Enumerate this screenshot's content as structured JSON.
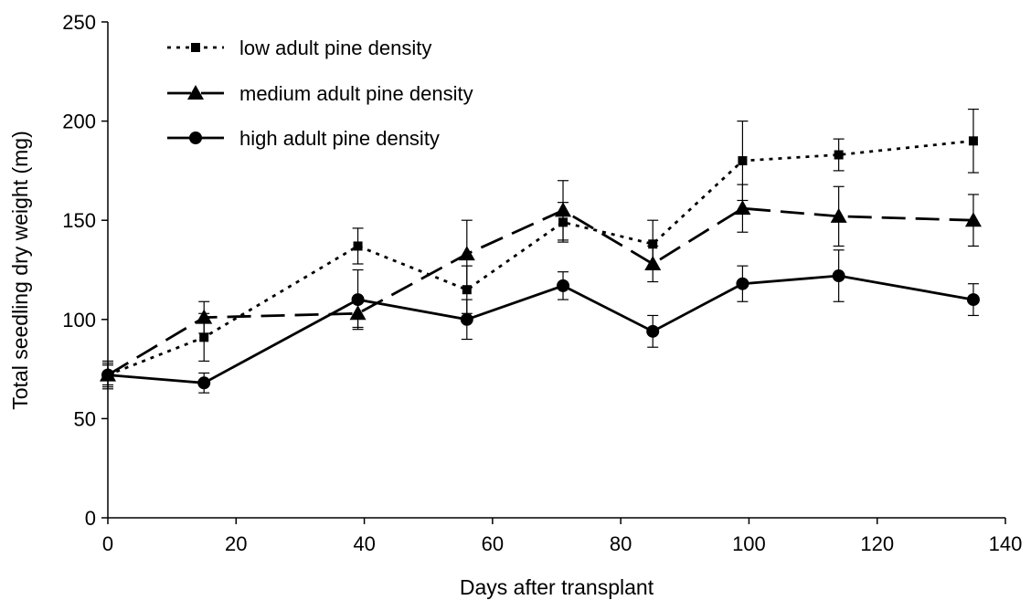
{
  "chart_data": {
    "type": "line",
    "title": "",
    "xlabel": "Days after transplant",
    "ylabel": "Total seedling dry weight (mg)",
    "xlim": [
      0,
      140
    ],
    "ylim": [
      0,
      250
    ],
    "xticks": [
      0,
      20,
      40,
      60,
      80,
      100,
      120,
      140
    ],
    "yticks": [
      0,
      50,
      100,
      150,
      200,
      250
    ],
    "grid": false,
    "legend_position": "top-left",
    "series": [
      {
        "name": "low adult pine density",
        "line_style": "dotted",
        "marker": "square",
        "color": "#000000",
        "x": [
          0,
          15,
          39,
          56,
          71,
          85,
          99,
          114,
          135
        ],
        "y": [
          72,
          91,
          137,
          115,
          149,
          138,
          180,
          183,
          190
        ],
        "err": [
          6,
          12,
          9,
          12,
          10,
          12,
          20,
          8,
          16
        ]
      },
      {
        "name": "medium adult pine density",
        "line_style": "dashed",
        "marker": "triangle",
        "color": "#000000",
        "x": [
          0,
          15,
          39,
          56,
          71,
          85,
          99,
          114,
          135
        ],
        "y": [
          72,
          101,
          103,
          133,
          155,
          128,
          156,
          152,
          150
        ],
        "err": [
          5,
          8,
          7,
          17,
          15,
          9,
          12,
          15,
          13
        ]
      },
      {
        "name": "high adult pine density",
        "line_style": "solid",
        "marker": "circle",
        "color": "#000000",
        "x": [
          0,
          15,
          39,
          56,
          71,
          85,
          99,
          114,
          135
        ],
        "y": [
          72,
          68,
          110,
          100,
          117,
          94,
          118,
          122,
          110
        ],
        "err": [
          7,
          5,
          15,
          10,
          7,
          8,
          9,
          13,
          8
        ]
      }
    ]
  }
}
